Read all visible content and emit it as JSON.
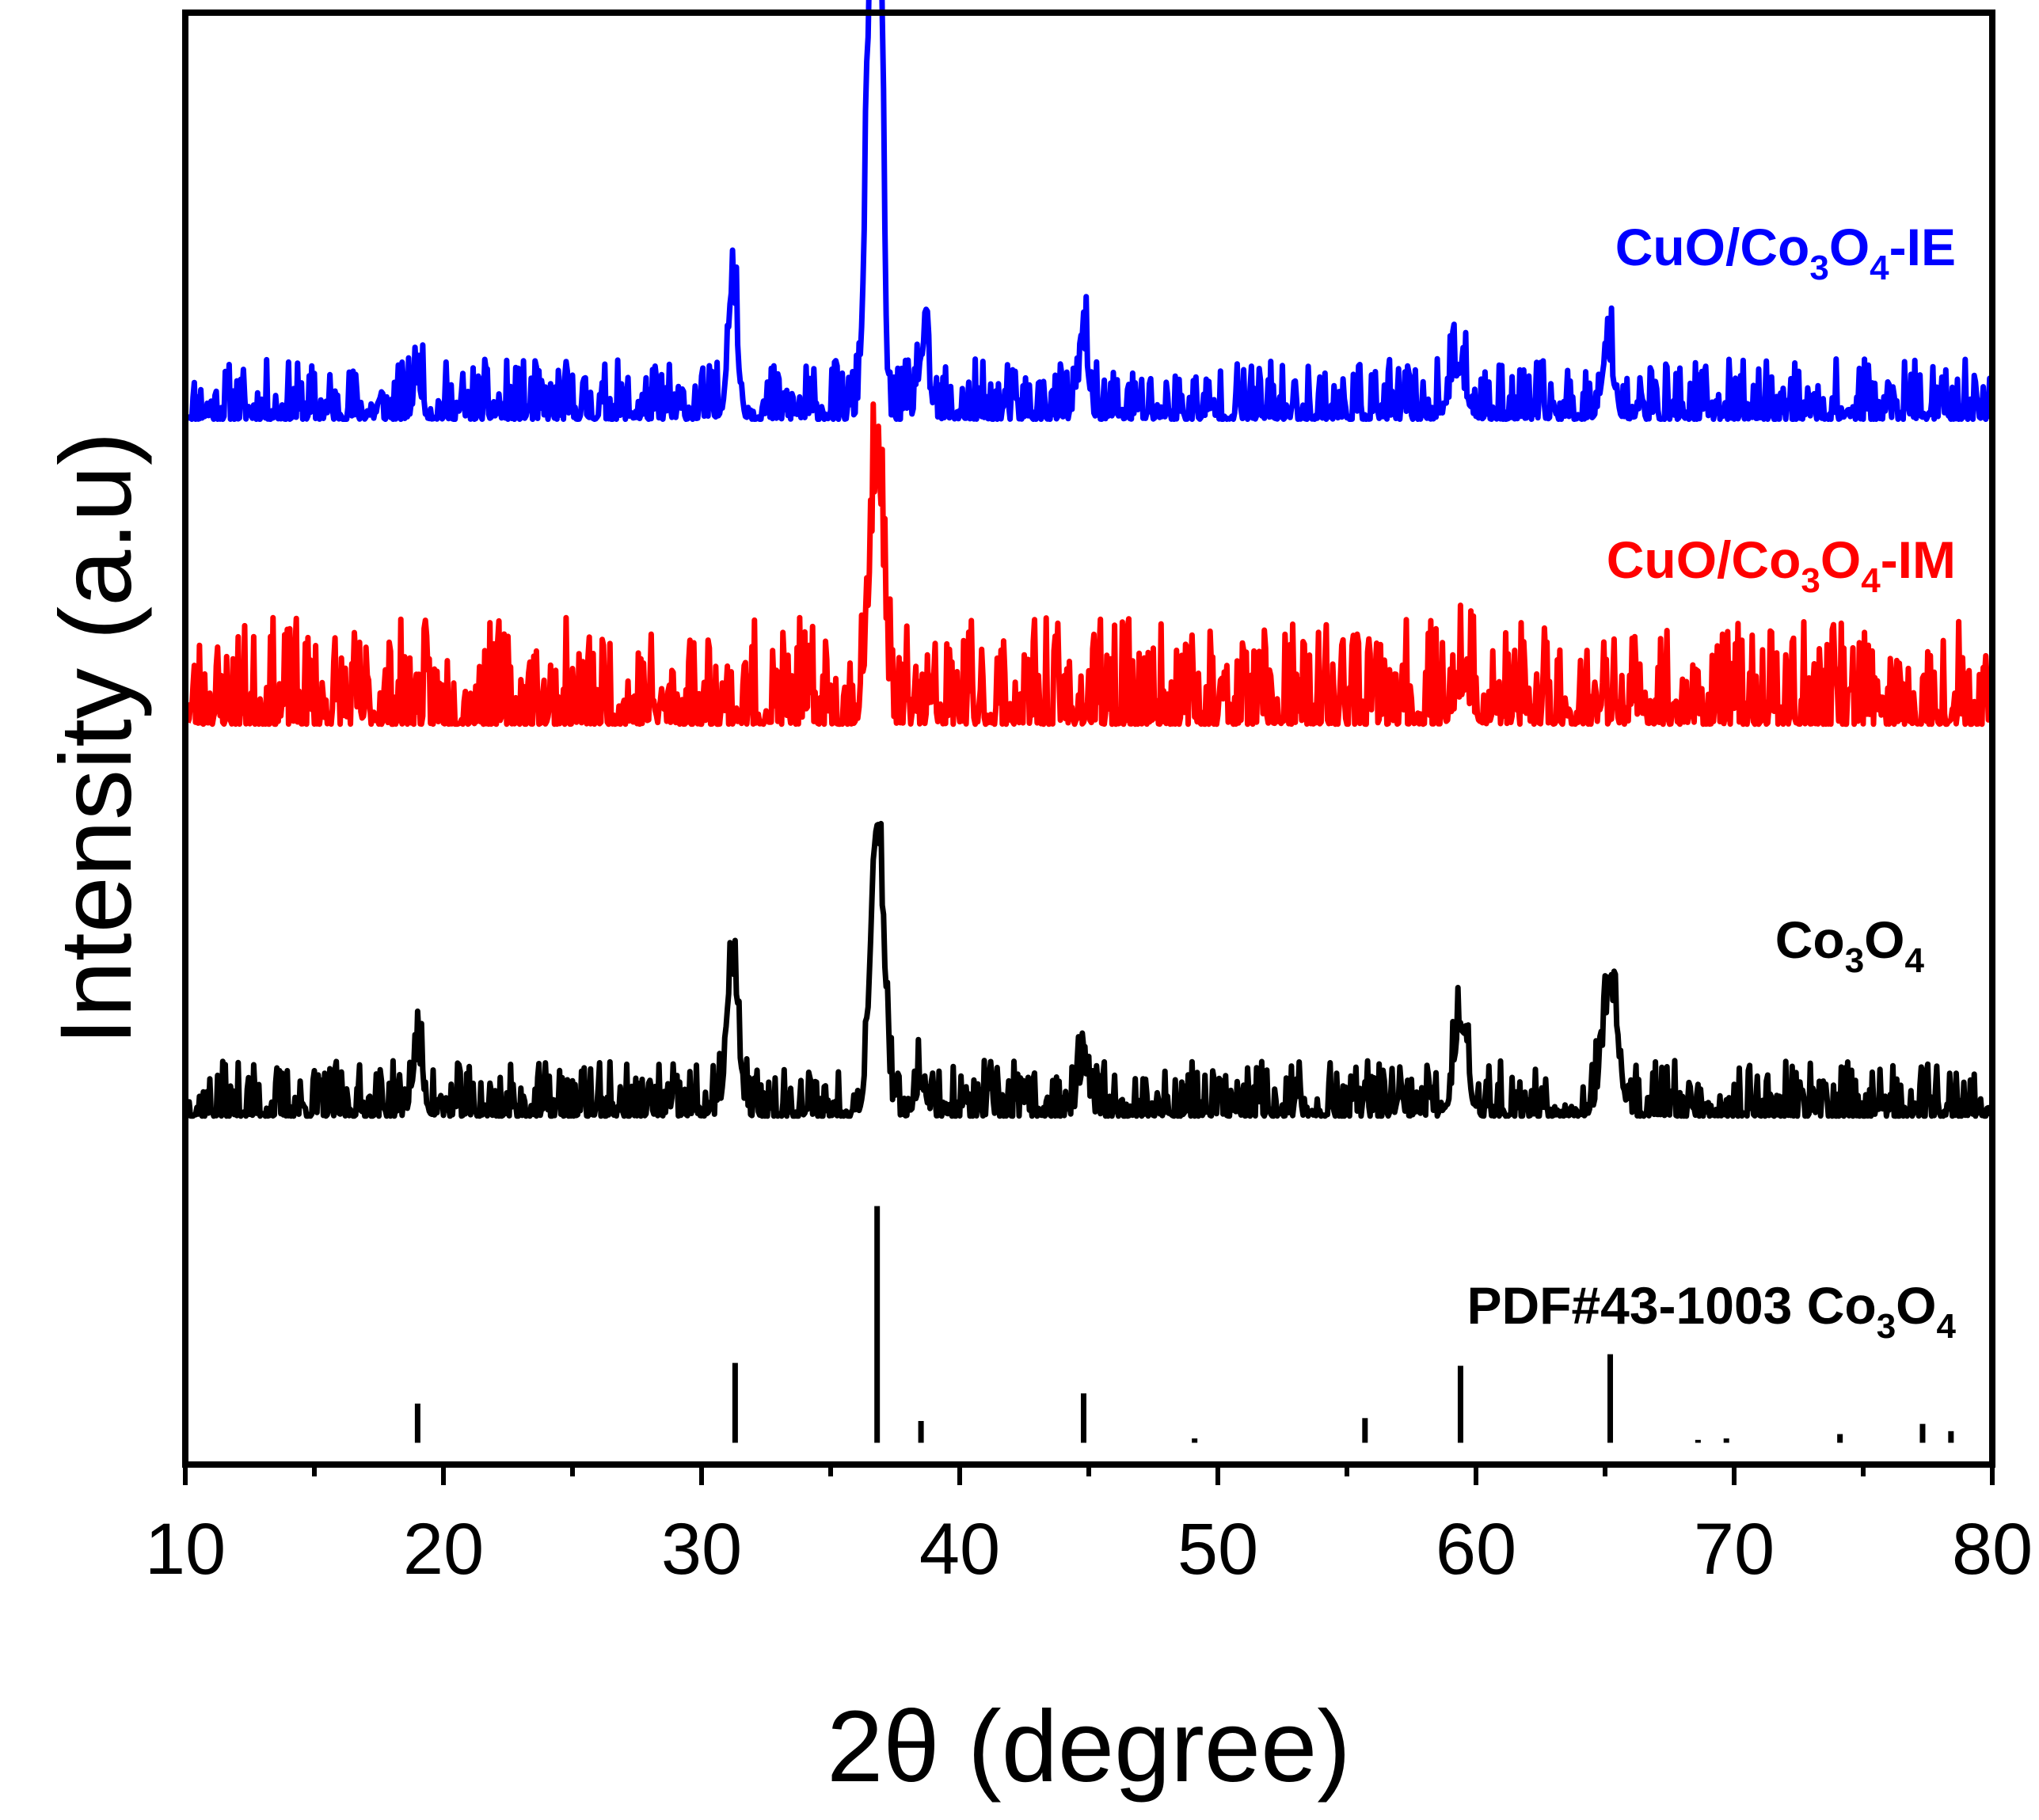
{
  "chart_data": {
    "type": "line",
    "xlabel": "2θ (degree)",
    "ylabel": "Intensity (a.u)",
    "xlim": [
      10,
      80
    ],
    "ylim": [
      0,
      100
    ],
    "x_ticks": [
      "10",
      "20",
      "30",
      "40",
      "50",
      "60",
      "70",
      "80"
    ],
    "grid": false,
    "colors": {
      "ie": "#0000ff",
      "im": "#ff0000",
      "co3o4": "#000000",
      "reference": "#000000"
    },
    "series": [
      {
        "id": "ie",
        "label": {
          "a": "CuO/Co",
          "s1": "3",
          "b": "O",
          "s2": "4",
          "c": "-IE"
        },
        "color": "#0000ff",
        "baseline": 72,
        "noise": 2.6,
        "seed": 11,
        "peaks": [
          [
            19.0,
            2.5,
            0.15
          ],
          [
            31.2,
            9,
            0.18
          ],
          [
            36.6,
            33,
            0.22
          ],
          [
            36.9,
            26,
            0.14
          ],
          [
            38.6,
            4.5,
            0.2
          ],
          [
            44.8,
            5,
            0.18
          ],
          [
            59.3,
            3,
            0.3
          ],
          [
            65.1,
            4.5,
            0.22
          ]
        ]
      },
      {
        "id": "im",
        "label": {
          "a": "CuO/Co",
          "s1": "3",
          "b": "O",
          "s2": "4",
          "c": "-IM"
        },
        "color": "#ff0000",
        "baseline": 51,
        "noise": 4.6,
        "seed": 23,
        "peaks": [
          [
            36.6,
            9,
            0.22
          ],
          [
            36.9,
            13,
            0.2
          ],
          [
            59.5,
            2,
            0.3
          ]
        ]
      },
      {
        "id": "co3o4",
        "label": {
          "a": "Co",
          "s1": "3",
          "b": "O",
          "s2": "4",
          "c": ""
        },
        "color": "#000000",
        "baseline": 24,
        "noise": 2.4,
        "seed": 37,
        "peaks": [
          [
            19.0,
            4,
            0.2
          ],
          [
            31.2,
            10,
            0.22
          ],
          [
            36.8,
            20,
            0.25
          ],
          [
            38.5,
            2,
            0.2
          ],
          [
            44.8,
            3,
            0.2
          ],
          [
            59.4,
            6,
            0.25
          ],
          [
            65.2,
            8,
            0.3
          ]
        ]
      }
    ],
    "reference": {
      "label": {
        "a": "PDF#43-1003 Co",
        "s1": "3",
        "b": "O",
        "s2": "4",
        "c": ""
      },
      "baseline": 1.5,
      "sticks": [
        [
          19.0,
          2.7
        ],
        [
          31.3,
          5.5
        ],
        [
          36.8,
          16.3
        ],
        [
          38.5,
          1.5
        ],
        [
          44.8,
          3.4
        ],
        [
          49.1,
          0.3
        ],
        [
          55.7,
          1.7
        ],
        [
          59.4,
          5.3
        ],
        [
          65.2,
          6.1
        ],
        [
          68.6,
          0.2
        ],
        [
          69.7,
          0.3
        ],
        [
          74.1,
          0.6
        ],
        [
          77.3,
          1.3
        ],
        [
          78.4,
          0.8
        ]
      ]
    }
  }
}
